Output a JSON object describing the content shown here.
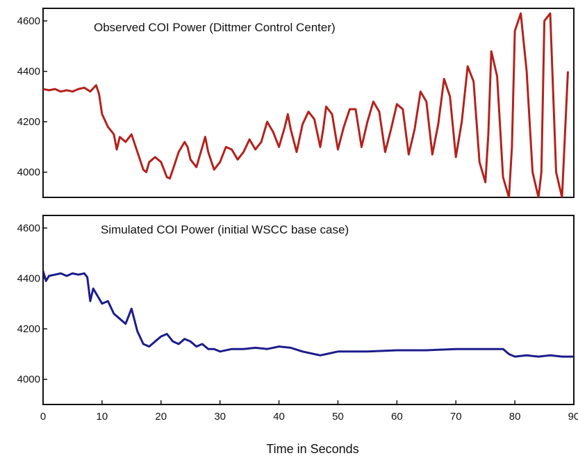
{
  "chart_data": [
    {
      "type": "line",
      "title": "Observed COI Power (Dittmer Control Center)",
      "xlabel": "",
      "ylabel": "",
      "xlim": [
        0,
        90
      ],
      "ylim": [
        3900,
        4650
      ],
      "yticks": [
        4000,
        4200,
        4400,
        4600
      ],
      "grid": false,
      "color": "#b3221c",
      "series": [
        {
          "x": [
            0,
            1,
            2,
            3,
            4,
            5,
            6,
            7,
            8,
            9,
            9.5,
            10,
            11,
            12,
            12.5,
            13,
            14,
            15,
            16,
            17,
            17.5,
            18,
            19,
            20,
            21,
            21.5,
            22,
            23,
            24,
            24.5,
            25,
            26,
            27,
            27.5,
            28,
            29,
            30,
            31,
            32,
            33,
            34,
            35,
            35.5,
            36,
            37,
            38,
            39,
            40,
            41,
            41.5,
            42,
            43,
            44,
            45,
            46,
            47,
            47.5,
            48,
            49,
            50,
            51,
            52,
            53,
            54,
            55,
            56,
            57,
            58,
            59,
            60,
            61,
            62,
            63,
            64,
            65,
            66,
            67,
            68,
            69,
            70,
            71,
            72,
            73,
            74,
            75,
            75.5,
            76,
            77,
            78,
            79,
            79.5,
            80,
            81,
            82,
            83,
            84,
            84.5,
            85,
            86,
            87,
            88,
            89
          ],
          "y": [
            4330,
            4325,
            4330,
            4320,
            4325,
            4320,
            4330,
            4335,
            4320,
            4345,
            4310,
            4230,
            4180,
            4150,
            4090,
            4140,
            4120,
            4150,
            4080,
            4010,
            4000,
            4040,
            4060,
            4040,
            3980,
            3975,
            4010,
            4080,
            4120,
            4100,
            4050,
            4020,
            4100,
            4140,
            4080,
            4010,
            4040,
            4100,
            4090,
            4050,
            4080,
            4130,
            4110,
            4090,
            4120,
            4200,
            4160,
            4100,
            4180,
            4230,
            4170,
            4080,
            4190,
            4240,
            4210,
            4100,
            4170,
            4260,
            4230,
            4090,
            4180,
            4250,
            4250,
            4100,
            4200,
            4280,
            4240,
            4080,
            4170,
            4270,
            4250,
            4070,
            4170,
            4320,
            4280,
            4070,
            4190,
            4370,
            4300,
            4060,
            4200,
            4420,
            4360,
            4040,
            3960,
            4150,
            4480,
            4380,
            3980,
            3900,
            4100,
            4560,
            4630,
            4400,
            4000,
            3900,
            4000,
            4600,
            4630,
            4000,
            3900,
            4400
          ]
        }
      ]
    },
    {
      "type": "line",
      "title": "Simulated COI Power (initial WSCC base case)",
      "xlabel": "Time in Seconds",
      "ylabel": "",
      "xlim": [
        0,
        90
      ],
      "ylim": [
        3900,
        4650
      ],
      "yticks": [
        4000,
        4200,
        4400,
        4600
      ],
      "xticks": [
        0,
        10,
        20,
        30,
        40,
        50,
        60,
        70,
        80,
        90
      ],
      "grid": false,
      "color": "#1c1c8c",
      "series": [
        {
          "x": [
            0,
            0.5,
            1,
            2,
            3,
            4,
            5,
            6,
            7,
            7.5,
            8,
            8.5,
            9,
            10,
            11,
            12,
            13,
            14,
            15,
            16,
            17,
            18,
            19,
            20,
            21,
            22,
            23,
            24,
            25,
            26,
            27,
            28,
            29,
            30,
            32,
            34,
            36,
            38,
            40,
            42,
            44,
            46,
            47,
            48,
            50,
            55,
            60,
            65,
            70,
            75,
            78,
            79,
            80,
            82,
            84,
            86,
            88,
            90
          ],
          "y": [
            4430,
            4390,
            4410,
            4415,
            4420,
            4410,
            4420,
            4415,
            4420,
            4405,
            4310,
            4360,
            4340,
            4300,
            4310,
            4260,
            4240,
            4220,
            4280,
            4190,
            4140,
            4130,
            4150,
            4170,
            4180,
            4150,
            4140,
            4160,
            4150,
            4130,
            4140,
            4120,
            4120,
            4110,
            4120,
            4120,
            4125,
            4120,
            4130,
            4125,
            4110,
            4100,
            4095,
            4100,
            4110,
            4110,
            4115,
            4115,
            4120,
            4120,
            4120,
            4100,
            4090,
            4095,
            4090,
            4095,
            4090,
            4090
          ]
        }
      ]
    }
  ]
}
